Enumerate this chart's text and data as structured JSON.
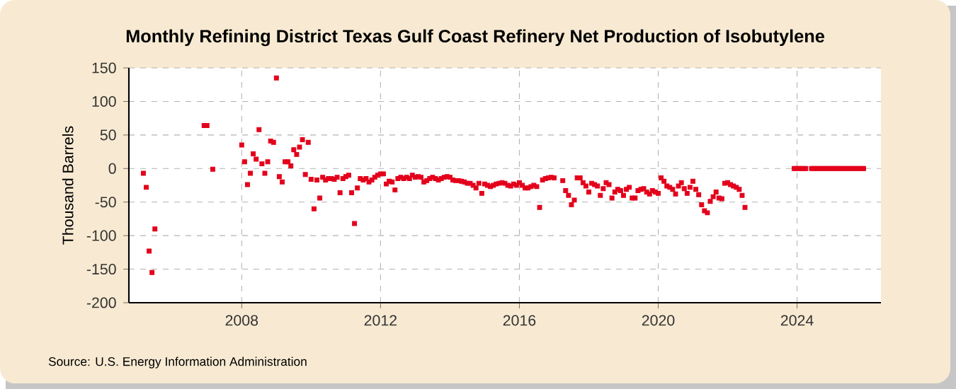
{
  "chart_data": {
    "type": "scatter",
    "title": "Monthly Refining District Texas Gulf Coast Refinery Net Production of Isobutylene",
    "ylabel": "Thousand Barrels",
    "annotations": [
      "Source: U.S. Energy Information Administration"
    ],
    "color": "#e3001b",
    "marker": "square",
    "grid": true,
    "xlim": [
      "2004-10",
      "2026-06"
    ],
    "xticks": [
      "2008",
      "2012",
      "2016",
      "2020",
      "2024"
    ],
    "ylim": [
      -200,
      150
    ],
    "yticks": [
      -200,
      -150,
      -100,
      -50,
      0,
      50,
      100,
      150
    ],
    "x": [
      "2005-03",
      "2005-04",
      "2005-05",
      "2005-06",
      "2005-07",
      "2006-12",
      "2007-01",
      "2007-03",
      "2008-01",
      "2008-02",
      "2008-03",
      "2008-04",
      "2008-05",
      "2008-06",
      "2008-07",
      "2008-08",
      "2008-09",
      "2008-10",
      "2008-11",
      "2008-12",
      "2009-01",
      "2009-02",
      "2009-03",
      "2009-04",
      "2009-05",
      "2009-06",
      "2009-07",
      "2009-08",
      "2009-09",
      "2009-10",
      "2009-11",
      "2009-12",
      "2010-01",
      "2010-02",
      "2010-03",
      "2010-04",
      "2010-05",
      "2010-06",
      "2010-07",
      "2010-08",
      "2010-09",
      "2010-10",
      "2010-11",
      "2010-12",
      "2011-01",
      "2011-02",
      "2011-03",
      "2011-04",
      "2011-05",
      "2011-06",
      "2011-07",
      "2011-08",
      "2011-09",
      "2011-10",
      "2011-11",
      "2011-12",
      "2012-01",
      "2012-02",
      "2012-03",
      "2012-04",
      "2012-05",
      "2012-06",
      "2012-07",
      "2012-08",
      "2012-09",
      "2012-10",
      "2012-11",
      "2012-12",
      "2013-01",
      "2013-02",
      "2013-03",
      "2013-04",
      "2013-05",
      "2013-06",
      "2013-07",
      "2013-08",
      "2013-09",
      "2013-10",
      "2013-11",
      "2013-12",
      "2014-01",
      "2014-02",
      "2014-03",
      "2014-04",
      "2014-05",
      "2014-06",
      "2014-07",
      "2014-08",
      "2014-09",
      "2014-10",
      "2014-11",
      "2014-12",
      "2015-01",
      "2015-02",
      "2015-03",
      "2015-04",
      "2015-05",
      "2015-06",
      "2015-07",
      "2015-08",
      "2015-09",
      "2015-10",
      "2015-11",
      "2015-12",
      "2016-01",
      "2016-02",
      "2016-03",
      "2016-04",
      "2016-05",
      "2016-06",
      "2016-07",
      "2016-08",
      "2016-09",
      "2016-10",
      "2016-11",
      "2016-12",
      "2017-01",
      "2017-04",
      "2017-05",
      "2017-06",
      "2017-07",
      "2017-08",
      "2017-09",
      "2017-10",
      "2017-11",
      "2017-12",
      "2018-01",
      "2018-02",
      "2018-03",
      "2018-04",
      "2018-05",
      "2018-06",
      "2018-07",
      "2018-08",
      "2018-09",
      "2018-10",
      "2018-11",
      "2018-12",
      "2019-01",
      "2019-02",
      "2019-03",
      "2019-04",
      "2019-05",
      "2019-06",
      "2019-07",
      "2019-08",
      "2019-09",
      "2019-10",
      "2019-11",
      "2019-12",
      "2020-01",
      "2020-02",
      "2020-03",
      "2020-04",
      "2020-05",
      "2020-06",
      "2020-07",
      "2020-08",
      "2020-09",
      "2020-10",
      "2020-11",
      "2020-12",
      "2021-01",
      "2021-02",
      "2021-03",
      "2021-04",
      "2021-05",
      "2021-06",
      "2021-07",
      "2021-08",
      "2021-09",
      "2021-10",
      "2021-11",
      "2021-12",
      "2022-01",
      "2022-02",
      "2022-03",
      "2022-04",
      "2022-05",
      "2022-06",
      "2022-07",
      "2023-12",
      "2024-01",
      "2024-02",
      "2024-03",
      "2024-04",
      "2024-06",
      "2024-07",
      "2024-08",
      "2024-09",
      "2024-10",
      "2024-11",
      "2024-12",
      "2025-01",
      "2025-02",
      "2025-03",
      "2025-04",
      "2025-05",
      "2025-06",
      "2025-07",
      "2025-08",
      "2025-09",
      "2025-10",
      "2025-11",
      "2025-12"
    ],
    "values": [
      -7,
      -28,
      -123,
      -155,
      -90,
      64,
      64,
      -1,
      35,
      10,
      -24,
      -7,
      22,
      14,
      58,
      7,
      -7,
      10,
      41,
      39,
      135,
      -12,
      -20,
      10,
      10,
      4,
      28,
      21,
      32,
      43,
      -9,
      39,
      -16,
      -60,
      -17,
      -44,
      -13,
      -17,
      -15,
      -15,
      -16,
      -13,
      -36,
      -15,
      -12,
      -10,
      -36,
      -82,
      -29,
      -15,
      -17,
      -15,
      -20,
      -17,
      -13,
      -10,
      -8,
      -8,
      -23,
      -19,
      -20,
      -32,
      -15,
      -13,
      -15,
      -13,
      -15,
      -10,
      -13,
      -12,
      -13,
      -20,
      -18,
      -15,
      -13,
      -15,
      -17,
      -15,
      -13,
      -12,
      -13,
      -17,
      -18,
      -18,
      -19,
      -20,
      -22,
      -22,
      -25,
      -29,
      -22,
      -37,
      -23,
      -25,
      -27,
      -25,
      -23,
      -22,
      -21,
      -22,
      -25,
      -26,
      -23,
      -25,
      -21,
      -25,
      -29,
      -29,
      -27,
      -25,
      -27,
      -58,
      -17,
      -15,
      -14,
      -13,
      -14,
      -18,
      -33,
      -40,
      -54,
      -47,
      -14,
      -14,
      -21,
      -26,
      -35,
      -22,
      -24,
      -26,
      -40,
      -30,
      -21,
      -24,
      -44,
      -35,
      -31,
      -33,
      -40,
      -31,
      -28,
      -44,
      -44,
      -33,
      -31,
      -30,
      -35,
      -38,
      -33,
      -35,
      -37,
      -14,
      -19,
      -26,
      -28,
      -31,
      -38,
      -26,
      -21,
      -30,
      -37,
      -28,
      -19,
      -31,
      -39,
      -54,
      -63,
      -66,
      -49,
      -42,
      -35,
      -44,
      -45,
      -22,
      -21,
      -24,
      -26,
      -28,
      -31,
      -40,
      -58,
      0,
      0,
      0,
      0,
      0,
      0,
      0,
      0,
      0,
      0,
      0,
      0,
      0,
      0,
      0,
      0,
      0,
      0,
      0,
      0,
      0,
      0,
      0,
      0
    ]
  }
}
